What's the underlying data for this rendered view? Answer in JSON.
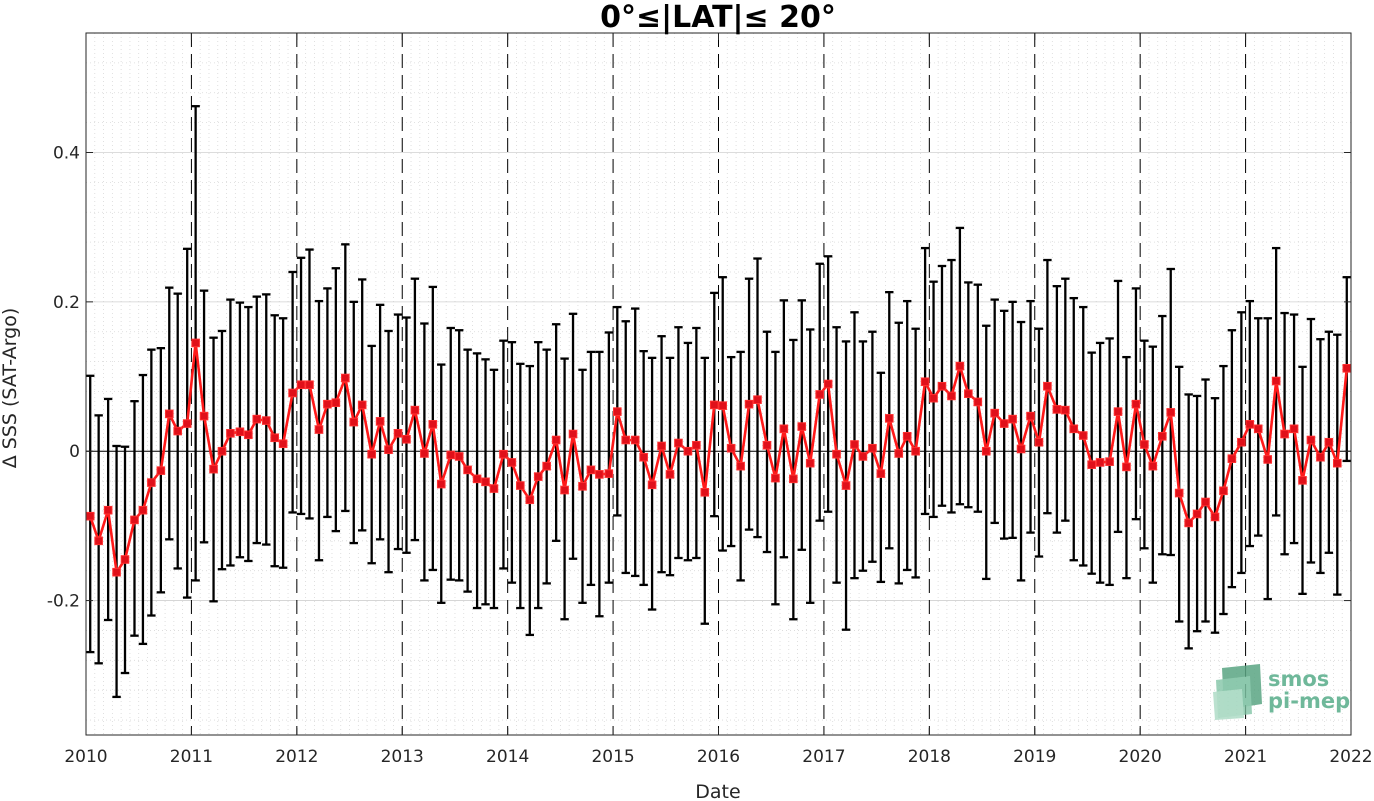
{
  "colors": {
    "series_line": "#ff1a1a",
    "marker": "#e0101a",
    "error_bar": "#000000",
    "grid": "#d0d0d0",
    "logo": "#6fb89a"
  },
  "logo": {
    "line1": "smos",
    "line2": "pi-mep"
  },
  "chart_data": {
    "type": "line",
    "title": "0°≤|LAT|≤ 20°",
    "xlabel": "Date",
    "ylabel": "Δ SSS (SAT-Argo)",
    "x_unit": "decimal year",
    "xlim": [
      2010,
      2022
    ],
    "ylim": [
      -0.38,
      0.56
    ],
    "x_ticks": [
      2010,
      2011,
      2012,
      2013,
      2014,
      2015,
      2016,
      2017,
      2018,
      2019,
      2020,
      2021,
      2022
    ],
    "x_tick_labels": [
      "2010",
      "2011",
      "2012",
      "2013",
      "2014",
      "2015",
      "2016",
      "2017",
      "2018",
      "2019",
      "2020",
      "2021",
      "2022"
    ],
    "y_ticks": [
      -0.2,
      0,
      0.2,
      0.4
    ],
    "y_tick_labels": [
      "-0.2",
      "0",
      "0.2",
      "0.4"
    ],
    "grid": true,
    "vertical_year_lines": "dashed",
    "legend": "none",
    "series": [
      {
        "x": [
          2010.04,
          2010.12,
          2010.21,
          2010.29,
          2010.37,
          2010.46,
          2010.54,
          2010.62,
          2010.71,
          2010.79,
          2010.87,
          2010.96,
          2011.04,
          2011.12,
          2011.21,
          2011.29,
          2011.37,
          2011.46,
          2011.54,
          2011.62,
          2011.71,
          2011.79,
          2011.87,
          2011.96,
          2012.04,
          2012.12,
          2012.21,
          2012.29,
          2012.37,
          2012.46,
          2012.54,
          2012.62,
          2012.71,
          2012.79,
          2012.87,
          2012.96,
          2013.04,
          2013.12,
          2013.21,
          2013.29,
          2013.37,
          2013.46,
          2013.54,
          2013.62,
          2013.71,
          2013.79,
          2013.87,
          2013.96,
          2014.04,
          2014.12,
          2014.21,
          2014.29,
          2014.37,
          2014.46,
          2014.54,
          2014.62,
          2014.71,
          2014.79,
          2014.87,
          2014.96,
          2015.04,
          2015.12,
          2015.21,
          2015.29,
          2015.37,
          2015.46,
          2015.54,
          2015.62,
          2015.71,
          2015.79,
          2015.87,
          2015.96,
          2016.04,
          2016.12,
          2016.21,
          2016.29,
          2016.37,
          2016.46,
          2016.54,
          2016.62,
          2016.71,
          2016.79,
          2016.87,
          2016.96,
          2017.04,
          2017.12,
          2017.21,
          2017.29,
          2017.37,
          2017.46,
          2017.54,
          2017.62,
          2017.71,
          2017.79,
          2017.87,
          2017.96,
          2018.04,
          2018.12,
          2018.21,
          2018.29,
          2018.37,
          2018.46,
          2018.54,
          2018.62,
          2018.71,
          2018.79,
          2018.87,
          2018.96,
          2019.04,
          2019.12,
          2019.21,
          2019.29,
          2019.37,
          2019.46,
          2019.54,
          2019.62,
          2019.71,
          2019.79,
          2019.87,
          2019.96,
          2020.04,
          2020.12,
          2020.21,
          2020.29,
          2020.37,
          2020.46,
          2020.54,
          2020.62,
          2020.71,
          2020.79,
          2020.87,
          2020.96,
          2021.04,
          2021.12,
          2021.21,
          2021.29,
          2021.37,
          2021.46,
          2021.54,
          2021.62,
          2021.71,
          2021.79,
          2021.87,
          2021.96
        ],
        "y": [
          -0.087,
          -0.12,
          -0.079,
          -0.162,
          -0.145,
          -0.092,
          -0.079,
          -0.042,
          -0.026,
          0.05,
          0.027,
          0.037,
          0.145,
          0.047,
          -0.024,
          0.0,
          0.024,
          0.026,
          0.022,
          0.043,
          0.041,
          0.018,
          0.01,
          0.078,
          0.089,
          0.089,
          0.029,
          0.063,
          0.065,
          0.098,
          0.039,
          0.062,
          -0.004,
          0.04,
          0.002,
          0.024,
          0.016,
          0.055,
          -0.003,
          0.036,
          -0.044,
          -0.005,
          -0.007,
          -0.025,
          -0.037,
          -0.041,
          -0.05,
          -0.004,
          -0.015,
          -0.046,
          -0.065,
          -0.034,
          -0.02,
          0.015,
          -0.052,
          0.023,
          -0.047,
          -0.025,
          -0.031,
          -0.03,
          0.053,
          0.015,
          0.015,
          -0.008,
          -0.045,
          0.007,
          -0.031,
          0.011,
          0.0,
          0.008,
          -0.055,
          0.062,
          0.061,
          0.004,
          -0.02,
          0.063,
          0.069,
          0.008,
          -0.036,
          0.03,
          -0.037,
          0.033,
          -0.016,
          0.076,
          0.09,
          -0.004,
          -0.046,
          0.009,
          -0.007,
          0.004,
          -0.03,
          0.044,
          -0.003,
          0.02,
          0.0,
          0.093,
          0.071,
          0.087,
          0.074,
          0.114,
          0.077,
          0.066,
          0.0,
          0.051,
          0.037,
          0.043,
          0.003,
          0.047,
          0.012,
          0.087,
          0.056,
          0.055,
          0.03,
          0.021,
          -0.018,
          -0.015,
          -0.014,
          0.053,
          -0.021,
          0.063,
          0.009,
          -0.02,
          0.02,
          0.052,
          -0.056,
          -0.096,
          -0.084,
          -0.068,
          -0.088,
          -0.053,
          -0.01,
          0.012,
          0.036,
          0.03,
          -0.011,
          0.094,
          0.023,
          0.03,
          -0.039,
          0.015,
          -0.008,
          0.012,
          -0.016,
          0.111
        ],
        "err_low": [
          -0.269,
          -0.284,
          -0.226,
          -0.329,
          -0.297,
          -0.247,
          -0.258,
          -0.22,
          -0.189,
          -0.118,
          -0.157,
          -0.196,
          -0.173,
          -0.122,
          -0.201,
          -0.158,
          -0.153,
          -0.142,
          -0.147,
          -0.123,
          -0.125,
          -0.154,
          -0.156,
          -0.082,
          -0.084,
          -0.09,
          -0.146,
          -0.088,
          -0.107,
          -0.08,
          -0.123,
          -0.106,
          -0.15,
          -0.118,
          -0.162,
          -0.131,
          -0.136,
          -0.119,
          -0.173,
          -0.159,
          -0.203,
          -0.172,
          -0.173,
          -0.188,
          -0.21,
          -0.205,
          -0.21,
          -0.157,
          -0.176,
          -0.21,
          -0.246,
          -0.21,
          -0.177,
          -0.12,
          -0.225,
          -0.144,
          -0.203,
          -0.179,
          -0.221,
          -0.176,
          -0.086,
          -0.163,
          -0.167,
          -0.179,
          -0.212,
          -0.162,
          -0.166,
          -0.143,
          -0.146,
          -0.143,
          -0.231,
          -0.087,
          -0.133,
          -0.127,
          -0.173,
          -0.105,
          -0.115,
          -0.135,
          -0.205,
          -0.142,
          -0.225,
          -0.132,
          -0.203,
          -0.093,
          -0.081,
          -0.176,
          -0.239,
          -0.17,
          -0.16,
          -0.148,
          -0.175,
          -0.13,
          -0.177,
          -0.159,
          -0.169,
          -0.084,
          -0.088,
          -0.073,
          -0.082,
          -0.071,
          -0.075,
          -0.081,
          -0.171,
          -0.096,
          -0.117,
          -0.116,
          -0.173,
          -0.109,
          -0.141,
          -0.083,
          -0.109,
          -0.093,
          -0.146,
          -0.153,
          -0.164,
          -0.176,
          -0.179,
          -0.108,
          -0.17,
          -0.091,
          -0.13,
          -0.176,
          -0.138,
          -0.139,
          -0.228,
          -0.264,
          -0.241,
          -0.228,
          -0.243,
          -0.218,
          -0.182,
          -0.163,
          -0.127,
          -0.113,
          -0.198,
          -0.086,
          -0.138,
          -0.123,
          -0.191,
          -0.149,
          -0.163,
          -0.136,
          -0.192,
          -0.013
        ],
        "err_high": [
          0.101,
          0.048,
          0.07,
          0.007,
          0.006,
          0.067,
          0.102,
          0.136,
          0.138,
          0.219,
          0.211,
          0.271,
          0.462,
          0.215,
          0.152,
          0.161,
          0.203,
          0.199,
          0.193,
          0.207,
          0.21,
          0.182,
          0.178,
          0.24,
          0.259,
          0.27,
          0.201,
          0.218,
          0.245,
          0.277,
          0.2,
          0.23,
          0.141,
          0.196,
          0.161,
          0.183,
          0.179,
          0.231,
          0.171,
          0.22,
          0.116,
          0.165,
          0.162,
          0.136,
          0.131,
          0.123,
          0.109,
          0.148,
          0.146,
          0.117,
          0.114,
          0.146,
          0.136,
          0.17,
          0.124,
          0.184,
          0.109,
          0.133,
          0.133,
          0.159,
          0.193,
          0.174,
          0.191,
          0.134,
          0.125,
          0.154,
          0.125,
          0.166,
          0.145,
          0.165,
          0.125,
          0.212,
          0.233,
          0.126,
          0.133,
          0.231,
          0.258,
          0.16,
          0.133,
          0.202,
          0.149,
          0.202,
          0.163,
          0.251,
          0.261,
          0.166,
          0.147,
          0.186,
          0.147,
          0.16,
          0.105,
          0.213,
          0.172,
          0.201,
          0.164,
          0.272,
          0.227,
          0.248,
          0.256,
          0.299,
          0.226,
          0.223,
          0.168,
          0.203,
          0.188,
          0.2,
          0.173,
          0.201,
          0.164,
          0.256,
          0.221,
          0.231,
          0.205,
          0.193,
          0.132,
          0.145,
          0.151,
          0.228,
          0.126,
          0.218,
          0.148,
          0.14,
          0.181,
          0.244,
          0.113,
          0.076,
          0.074,
          0.096,
          0.071,
          0.114,
          0.162,
          0.186,
          0.201,
          0.178,
          0.178,
          0.272,
          0.185,
          0.183,
          0.113,
          0.177,
          0.15,
          0.16,
          0.156,
          0.233
        ]
      }
    ]
  }
}
